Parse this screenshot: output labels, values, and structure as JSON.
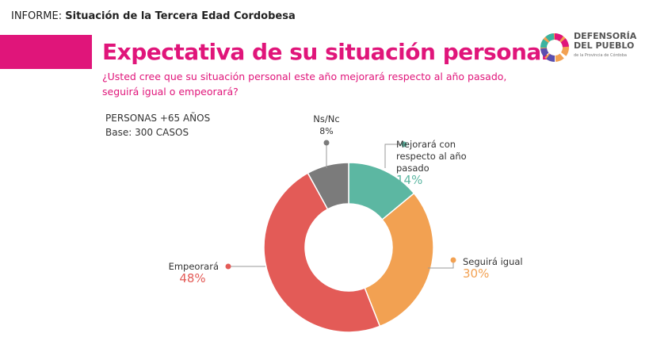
{
  "header": {
    "report_prefix": "INFORME: ",
    "report_title": "Situación de la Tercera Edad Cordobesa"
  },
  "logo": {
    "line1": "DEFENSORÍA",
    "line2": "DEL PUEBLO",
    "line3": "de la Provincia de Córdoba"
  },
  "chart_data": {
    "type": "pie",
    "title": "Expectativa de su situación personal",
    "subtitle": "¿Usted cree que su situación personal este año mejorará respecto al año pasado, seguirá igual o empeorará?",
    "population": "PERSONAS +65 AÑOS",
    "base": "Base: 300 CASOS",
    "donut": true,
    "slices": [
      {
        "label": "Mejorará con respecto al año pasado",
        "value": 14,
        "display": "14%",
        "color": "#5cb7a2"
      },
      {
        "label": "Seguirá igual",
        "value": 30,
        "display": "30%",
        "color": "#f2a152"
      },
      {
        "label": "Empeorará",
        "value": 48,
        "display": "48%",
        "color": "#e35b57"
      },
      {
        "label": "Ns/Nc",
        "value": 8,
        "display": "8%",
        "color": "#7b7b7b"
      }
    ]
  }
}
